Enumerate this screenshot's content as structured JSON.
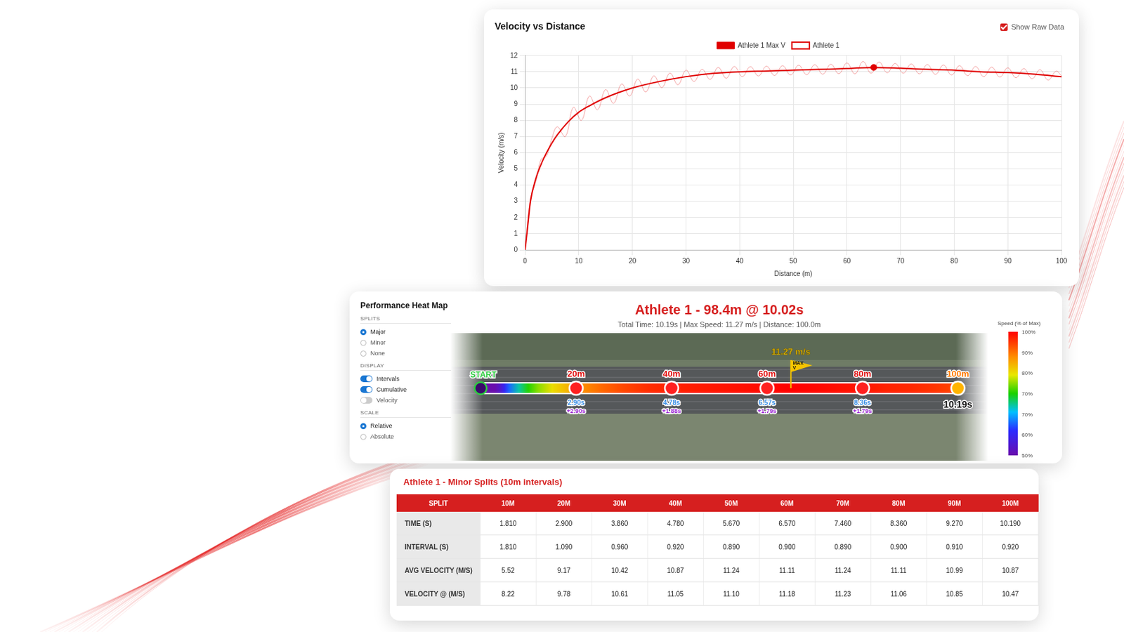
{
  "chart_data": {
    "type": "line",
    "title": "Velocity vs Distance",
    "x_label": "Distance (m)",
    "y_label": "Velocity (m/s)",
    "xlim": [
      0,
      100
    ],
    "xticks": [
      0,
      10,
      20,
      30,
      40,
      50,
      60,
      70,
      80,
      90,
      100
    ],
    "ylim": [
      0,
      12
    ],
    "yticks": [
      0,
      1,
      2,
      3,
      4,
      5,
      6,
      7,
      8,
      9,
      10,
      11,
      12
    ],
    "grid": true,
    "legend": "top",
    "show_raw_data": true,
    "show_raw_data_label": "Show Raw Data",
    "series": [
      {
        "name": "Athlete 1 Max V",
        "color": "#e00000",
        "type": "scatter",
        "marker": "circle",
        "x": [
          65
        ],
        "values": [
          11.27
        ]
      },
      {
        "name": "Athlete 1",
        "color": "#e00000",
        "type": "line",
        "x": [
          0,
          0.5,
          1,
          2,
          3,
          4,
          5,
          6,
          8,
          10,
          12,
          15,
          20,
          25,
          30,
          35,
          40,
          45,
          50,
          55,
          60,
          65,
          70,
          75,
          80,
          85,
          90,
          95,
          100
        ],
        "values": [
          0,
          1.5,
          3,
          4.4,
          5.3,
          6.0,
          6.6,
          7.1,
          7.9,
          8.5,
          8.9,
          9.4,
          10.0,
          10.4,
          10.7,
          10.9,
          11.0,
          11.05,
          11.1,
          11.15,
          11.2,
          11.27,
          11.22,
          11.15,
          11.1,
          11.0,
          10.95,
          10.85,
          10.7
        ],
        "raw_x": [
          0,
          1,
          2,
          3,
          4,
          5,
          6,
          7.5,
          9,
          10.5,
          12,
          13.5,
          15,
          16.5,
          18,
          19.5,
          21,
          22.5,
          24,
          25.5,
          27,
          28.5,
          30,
          31.5,
          33,
          34.5,
          36,
          37.5,
          39,
          40.5,
          42,
          43.5,
          45,
          46.5,
          48,
          49.5,
          51,
          52.5,
          54,
          55.5,
          57,
          58.5,
          60,
          61.5,
          63,
          64.5,
          66,
          67.5,
          69,
          70.5,
          72,
          73.5,
          75,
          76.5,
          78,
          79.5,
          81,
          82.5,
          84,
          85.5,
          87,
          88.5,
          90,
          91.5,
          93,
          94.5,
          96,
          97.5,
          99,
          100
        ],
        "raw_values": [
          0,
          3.2,
          4.2,
          5.6,
          5.8,
          6.9,
          7.6,
          7.0,
          8.8,
          8.0,
          9.5,
          8.65,
          9.9,
          9.05,
          10.25,
          9.5,
          10.55,
          9.75,
          10.75,
          10.02,
          10.92,
          10.2,
          11.1,
          10.4,
          11.15,
          10.53,
          11.27,
          10.6,
          11.33,
          10.7,
          11.32,
          10.74,
          11.35,
          10.77,
          11.38,
          10.8,
          11.41,
          10.82,
          11.44,
          10.85,
          11.47,
          10.88,
          11.55,
          10.87,
          11.64,
          10.91,
          11.61,
          10.94,
          11.52,
          10.91,
          11.49,
          10.87,
          11.45,
          10.84,
          11.42,
          10.8,
          11.38,
          10.76,
          11.33,
          10.7,
          11.29,
          10.67,
          11.25,
          10.63,
          11.2,
          10.57,
          11.13,
          10.49,
          11.04,
          10.75
        ]
      }
    ]
  },
  "heat_map": {
    "panel_title": "Performance Heat Map",
    "title": "Athlete 1 - 98.4m @ 10.02s",
    "subtitle": "Total Time: 10.19s | Max Speed: 11.27 m/s | Distance: 100.0m",
    "controls": [
      {
        "heading": "SPLITS",
        "kind": "radio",
        "options": [
          {
            "label": "Major",
            "on": true
          },
          {
            "label": "Minor",
            "on": false
          },
          {
            "label": "None",
            "on": false
          }
        ]
      },
      {
        "heading": "DISPLAY",
        "kind": "toggle",
        "options": [
          {
            "label": "Intervals",
            "on": true
          },
          {
            "label": "Cumulative",
            "on": true
          },
          {
            "label": "Velocity",
            "on": false
          }
        ]
      },
      {
        "heading": "SCALE",
        "kind": "radio",
        "options": [
          {
            "label": "Relative",
            "on": true
          },
          {
            "label": "Absolute",
            "on": false
          }
        ]
      }
    ],
    "markers": [
      {
        "distance": 0,
        "label": "START"
      },
      {
        "distance": 20,
        "label": "20m",
        "cumulative": "2.90s",
        "interval": "+2.90s"
      },
      {
        "distance": 40,
        "label": "40m",
        "cumulative": "4.78s",
        "interval": "+1.88s"
      },
      {
        "distance": 60,
        "label": "60m",
        "cumulative": "6.57s",
        "interval": "+1.79s"
      },
      {
        "distance": 80,
        "label": "80m",
        "cumulative": "8.36s",
        "interval": "+1.79s"
      },
      {
        "distance": 100,
        "label": "100m",
        "final": "10.19s"
      }
    ],
    "max_label": "11.27 m/s",
    "max_flag": "MAX V",
    "colorbar": {
      "title": "Speed (% of Max)",
      "range": [
        50,
        100
      ],
      "labels": [
        "100%",
        "90%",
        "80%",
        "70%",
        "70%",
        "60%",
        "50%"
      ]
    }
  },
  "table": {
    "title": "Athlete 1 - Minor Splits (10m intervals)",
    "header": [
      "SPLIT",
      "10M",
      "20M",
      "30M",
      "40M",
      "50M",
      "60M",
      "70M",
      "80M",
      "90M",
      "100M"
    ],
    "rows": [
      [
        "TIME (S)",
        "1.810",
        "2.900",
        "3.860",
        "4.780",
        "5.670",
        "6.570",
        "7.460",
        "8.360",
        "9.270",
        "10.190"
      ],
      [
        "INTERVAL (S)",
        "1.810",
        "1.090",
        "0.960",
        "0.920",
        "0.890",
        "0.900",
        "0.890",
        "0.900",
        "0.910",
        "0.920"
      ],
      [
        "AVG VELOCITY (M/S)",
        "5.52",
        "9.17",
        "10.42",
        "10.87",
        "11.24",
        "11.11",
        "11.24",
        "11.11",
        "10.99",
        "10.87"
      ],
      [
        "VELOCITY @ (M/S)",
        "8.22",
        "9.78",
        "10.61",
        "11.05",
        "11.10",
        "11.18",
        "11.23",
        "11.06",
        "10.85",
        "10.47"
      ]
    ]
  }
}
